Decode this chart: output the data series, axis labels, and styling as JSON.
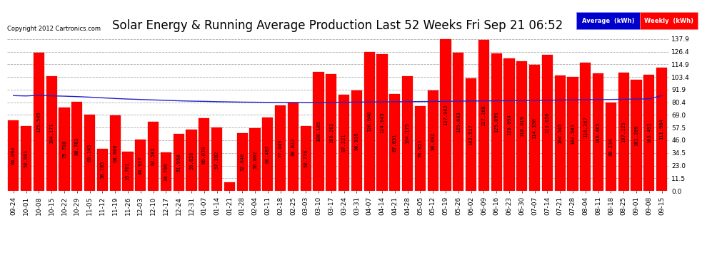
{
  "title": "Solar Energy & Running Average Production Last 52 Weeks Fri Sep 21 06:52",
  "copyright": "Copyright 2012 Cartronics.com",
  "yticks": [
    0.0,
    11.5,
    23.0,
    34.5,
    46.0,
    57.5,
    69.0,
    80.4,
    91.9,
    103.4,
    114.9,
    126.4,
    137.9
  ],
  "ymax": 143,
  "bar_color": "#FF0000",
  "avg_line_color": "#2222CC",
  "weekly_values": [
    64.094,
    58.981,
    125.545,
    104.171,
    75.7,
    80.781,
    69.145,
    38.285,
    68.86,
    35.761,
    46.937,
    62.581,
    34.796,
    51.958,
    55.826,
    66.078,
    57.282,
    8.022,
    52.64,
    56.802,
    66.487,
    77.449,
    80.022,
    58.776,
    108.105,
    106.282,
    87.221,
    90.935,
    126.046,
    124.043,
    87.851,
    104.175,
    76.855,
    90.892,
    137.902,
    125.603,
    102.517,
    137.268,
    125.095,
    120.094,
    118.019,
    114.336,
    123.65,
    104.545,
    103.503,
    116.267,
    106.465,
    80.234,
    107.125,
    101.209,
    105.493,
    111.984
  ],
  "avg_values": [
    86.5,
    86.2,
    86.8,
    86.3,
    86.0,
    85.6,
    85.1,
    84.5,
    83.9,
    83.4,
    83.0,
    82.6,
    82.2,
    81.8,
    81.5,
    81.3,
    81.0,
    80.8,
    80.6,
    80.5,
    80.4,
    80.3,
    80.3,
    80.2,
    80.3,
    80.4,
    80.5,
    80.6,
    80.7,
    80.8,
    80.9,
    81.0,
    81.1,
    81.2,
    81.3,
    81.5,
    81.6,
    81.7,
    81.8,
    81.9,
    82.0,
    82.2,
    82.3,
    82.5,
    82.6,
    82.8,
    82.9,
    83.0,
    83.2,
    83.4,
    83.6,
    86.5
  ],
  "x_labels": [
    "09-24",
    "10-01",
    "10-08",
    "10-15",
    "10-22",
    "10-29",
    "11-05",
    "11-12",
    "11-19",
    "11-26",
    "12-03",
    "12-10",
    "12-17",
    "12-24",
    "12-31",
    "01-07",
    "01-14",
    "01-21",
    "01-28",
    "02-04",
    "02-11",
    "02-18",
    "02-25",
    "03-03",
    "03-10",
    "03-17",
    "03-24",
    "03-31",
    "04-07",
    "04-14",
    "04-21",
    "04-28",
    "05-05",
    "05-12",
    "05-19",
    "05-26",
    "06-02",
    "06-09",
    "06-16",
    "06-23",
    "06-30",
    "07-07",
    "07-14",
    "07-21",
    "07-28",
    "08-04",
    "08-11",
    "08-18",
    "08-25",
    "09-01",
    "09-08",
    "09-15"
  ],
  "bg_color": "#FFFFFF",
  "title_fontsize": 12,
  "label_fontsize": 5.0,
  "tick_fontsize": 6.5
}
